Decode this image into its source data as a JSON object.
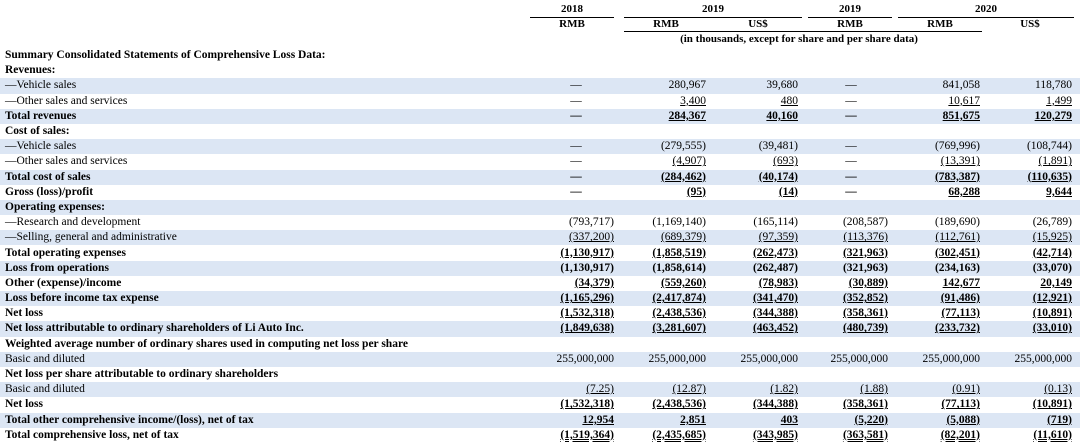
{
  "header": {
    "years": [
      "2018",
      "2019",
      "2019",
      "2020"
    ],
    "currencies": [
      "RMB",
      "RMB",
      "US$",
      "RMB",
      "RMB",
      "US$"
    ],
    "note": "(in thousands, except for share and per share data)"
  },
  "rows": [
    {
      "label": "Summary Consolidated Statements of Comprehensive Loss Data:",
      "style": "bold",
      "shade": false,
      "values": [
        "",
        "",
        "",
        "",
        "",
        ""
      ]
    },
    {
      "label": "Revenues:",
      "style": "bold",
      "shade": false,
      "values": [
        "",
        "",
        "",
        "",
        "",
        ""
      ]
    },
    {
      "label": "—Vehicle sales",
      "style": "",
      "shade": true,
      "values": [
        "—",
        "280,967",
        "39,680",
        "—",
        "841,058",
        "118,780"
      ]
    },
    {
      "label": "—Other sales and services",
      "style": "ul",
      "shade": false,
      "values": [
        "—",
        "3,400",
        "480",
        "—",
        "10,617",
        "1,499"
      ]
    },
    {
      "label": "Total revenues",
      "style": "bold ul",
      "shade": true,
      "values": [
        "—",
        "284,367",
        "40,160",
        "—",
        "851,675",
        "120,279"
      ]
    },
    {
      "label": "Cost of sales:",
      "style": "bold",
      "shade": false,
      "values": [
        "",
        "",
        "",
        "",
        "",
        ""
      ]
    },
    {
      "label": "—Vehicle sales",
      "style": "",
      "shade": true,
      "values": [
        "—",
        "(279,555)",
        "(39,481)",
        "—",
        "(769,996)",
        "(108,744)"
      ]
    },
    {
      "label": "—Other sales and services",
      "style": "ul",
      "shade": false,
      "values": [
        "—",
        "(4,907)",
        "(693)",
        "—",
        "(13,391)",
        "(1,891)"
      ]
    },
    {
      "label": "Total cost of sales",
      "style": "bold ul",
      "shade": true,
      "values": [
        "—",
        "(284,462)",
        "(40,174)",
        "—",
        "(783,387)",
        "(110,635)"
      ]
    },
    {
      "label": "Gross (loss)/profit",
      "style": "bold ul",
      "shade": false,
      "values": [
        "—",
        "(95)",
        "(14)",
        "—",
        "68,288",
        "9,644"
      ]
    },
    {
      "label": "Operating expenses:",
      "style": "bold",
      "shade": true,
      "values": [
        "",
        "",
        "",
        "",
        "",
        ""
      ]
    },
    {
      "label": "—Research and development",
      "style": "",
      "shade": false,
      "values": [
        "(793,717)",
        "(1,169,140)",
        "(165,114)",
        "(208,587)",
        "(189,690)",
        "(26,789)"
      ]
    },
    {
      "label": "—Selling, general and administrative",
      "style": "ul",
      "shade": true,
      "values": [
        "(337,200)",
        "(689,379)",
        "(97,359)",
        "(113,376)",
        "(112,761)",
        "(15,925)"
      ]
    },
    {
      "label": "Total operating expenses",
      "style": "bold ul",
      "shade": false,
      "values": [
        "(1,130,917)",
        "(1,858,519)",
        "(262,473)",
        "(321,963)",
        "(302,451)",
        "(42,714)"
      ]
    },
    {
      "label": "Loss from operations",
      "style": "bold",
      "shade": true,
      "values": [
        "(1,130,917)",
        "(1,858,614)",
        "(262,487)",
        "(321,963)",
        "(234,163)",
        "(33,070)"
      ]
    },
    {
      "label": "Other (expense)/income",
      "style": "bold ul",
      "shade": false,
      "values": [
        "(34,379)",
        "(559,260)",
        "(78,983)",
        "(30,889)",
        "142,677",
        "20,149"
      ]
    },
    {
      "label": "Loss before income tax expense",
      "style": "bold ul",
      "shade": true,
      "values": [
        "(1,165,296)",
        "(2,417,874)",
        "(341,470)",
        "(352,852)",
        "(91,486)",
        "(12,921)"
      ]
    },
    {
      "label": "Net loss",
      "style": "bold ul",
      "shade": false,
      "values": [
        "(1,532,318)",
        "(2,438,536)",
        "(344,388)",
        "(358,361)",
        "(77,113)",
        "(10,891)"
      ]
    },
    {
      "label": "Net loss attributable to ordinary shareholders of Li Auto Inc.",
      "style": "bold ul",
      "shade": true,
      "values": [
        "(1,849,638)",
        "(3,281,607)",
        "(463,452)",
        "(480,739)",
        "(233,732)",
        "(33,010)"
      ]
    },
    {
      "label": "Weighted average number of ordinary shares used in computing net loss per share",
      "style": "bold",
      "shade": false,
      "values": [
        "",
        "",
        "",
        "",
        "",
        ""
      ]
    },
    {
      "label": "Basic and diluted",
      "style": "",
      "shade": true,
      "values": [
        "255,000,000",
        "255,000,000",
        "255,000,000",
        "255,000,000",
        "255,000,000",
        "255,000,000"
      ]
    },
    {
      "label": "Net loss per share attributable to ordinary shareholders",
      "style": "bold",
      "shade": false,
      "values": [
        "",
        "",
        "",
        "",
        "",
        ""
      ]
    },
    {
      "label": "Basic and diluted",
      "style": "ul",
      "shade": true,
      "values": [
        "(7.25)",
        "(12.87)",
        "(1.82)",
        "(1.88)",
        "(0.91)",
        "(0.13)"
      ]
    },
    {
      "label": "Net loss",
      "style": "bold ul",
      "shade": false,
      "values": [
        "(1,532,318)",
        "(2,438,536)",
        "(344,388)",
        "(358,361)",
        "(77,113)",
        "(10,891)"
      ]
    },
    {
      "label": "Total other comprehensive income/(loss), net of tax",
      "style": "bold ul",
      "shade": true,
      "values": [
        "12,954",
        "2,851",
        "403",
        "(5,220)",
        "(5,088)",
        "(719)"
      ]
    },
    {
      "label": "Total comprehensive loss, net of tax",
      "style": "bold dul",
      "shade": false,
      "values": [
        "(1,519,364)",
        "(2,435,685)",
        "(343,985)",
        "(363,581)",
        "(82,201)",
        "(11,610)"
      ]
    }
  ]
}
